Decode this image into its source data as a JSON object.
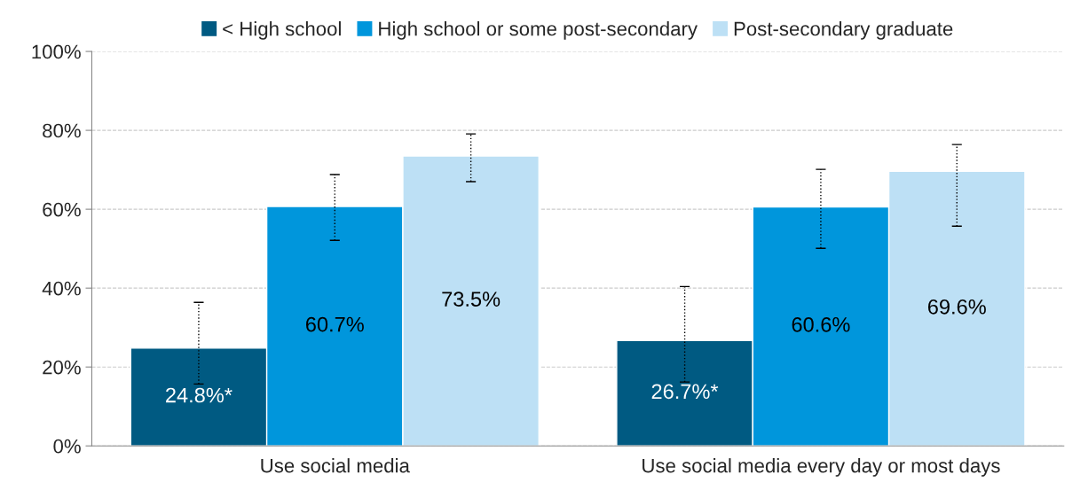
{
  "chart_data": {
    "type": "bar",
    "categories": [
      "Use social media",
      "Use social media every day or most days"
    ],
    "series": [
      {
        "name": "< High school",
        "color": "#005a82",
        "values": [
          24.8,
          26.7
        ],
        "errors": [
          [
            15.7,
            36.4
          ],
          [
            16.2,
            40.4
          ]
        ],
        "value_labels": [
          "24.8%*",
          "26.7%*"
        ]
      },
      {
        "name": "High school or some post-secondary",
        "color": "#0096dc",
        "values": [
          60.7,
          60.6
        ],
        "errors": [
          [
            52.1,
            68.8
          ],
          [
            50.1,
            70.1
          ]
        ],
        "value_labels": [
          "60.7%",
          "60.6%"
        ]
      },
      {
        "name": "Post-secondary graduate",
        "color": "#bde0f5",
        "values": [
          73.5,
          69.6
        ],
        "errors": [
          [
            67.0,
            79.1
          ],
          [
            55.7,
            76.4
          ]
        ],
        "value_labels": [
          "73.5%",
          "69.6%"
        ]
      }
    ],
    "ylim": [
      0,
      100
    ],
    "yticks": [
      {
        "value": 0,
        "label": "0%"
      },
      {
        "value": 20,
        "label": "20%"
      },
      {
        "value": 40,
        "label": "40%"
      },
      {
        "value": 60,
        "label": "60%"
      },
      {
        "value": 80,
        "label": "80%"
      },
      {
        "value": 100,
        "label": "100%"
      }
    ],
    "grid": "y",
    "legend": "top"
  }
}
